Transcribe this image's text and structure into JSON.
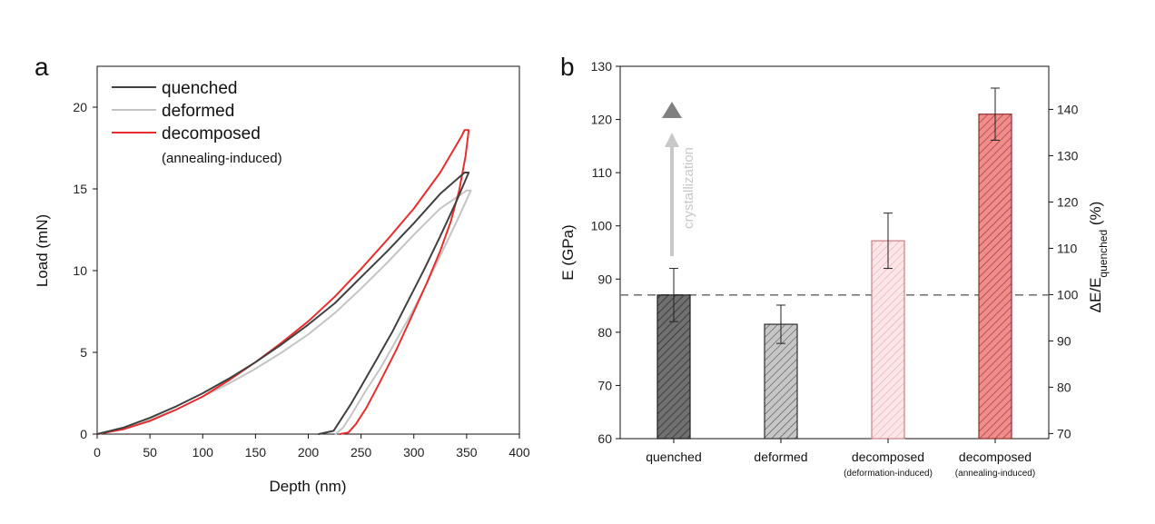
{
  "chart_data": [
    {
      "panel": "a",
      "type": "line",
      "xlabel": "Depth (nm)",
      "ylabel": "Load (mN)",
      "xlim": [
        0,
        400
      ],
      "ylim": [
        0,
        22.5
      ],
      "xticks": [
        0,
        50,
        100,
        150,
        200,
        250,
        300,
        350,
        400
      ],
      "yticks": [
        0,
        5,
        10,
        15,
        20
      ],
      "legend_subtitle": "(annealing-induced)",
      "series": [
        {
          "name": "quenched",
          "color": "#404040",
          "loading": [
            [
              0,
              0
            ],
            [
              25,
              0.4
            ],
            [
              50,
              1.0
            ],
            [
              75,
              1.7
            ],
            [
              100,
              2.5
            ],
            [
              125,
              3.4
            ],
            [
              150,
              4.4
            ],
            [
              175,
              5.5
            ],
            [
              200,
              6.7
            ],
            [
              225,
              8.0
            ],
            [
              250,
              9.6
            ],
            [
              275,
              11.2
            ],
            [
              300,
              12.9
            ],
            [
              325,
              14.7
            ],
            [
              348,
              16.0
            ]
          ],
          "unloading": [
            [
              352,
              16.0
            ],
            [
              340,
              14.2
            ],
            [
              325,
              12.1
            ],
            [
              310,
              10.1
            ],
            [
              295,
              8.2
            ],
            [
              280,
              6.3
            ],
            [
              265,
              4.6
            ],
            [
              250,
              2.9
            ],
            [
              240,
              1.8
            ],
            [
              230,
              0.8
            ],
            [
              224,
              0.2
            ],
            [
              210,
              0
            ]
          ]
        },
        {
          "name": "deformed",
          "color": "#c4c4c4",
          "loading": [
            [
              0,
              0
            ],
            [
              25,
              0.3
            ],
            [
              50,
              0.9
            ],
            [
              75,
              1.5
            ],
            [
              100,
              2.3
            ],
            [
              125,
              3.1
            ],
            [
              150,
              4.0
            ],
            [
              175,
              5.0
            ],
            [
              200,
              6.1
            ],
            [
              225,
              7.4
            ],
            [
              250,
              8.9
            ],
            [
              275,
              10.5
            ],
            [
              300,
              12.2
            ],
            [
              325,
              13.8
            ],
            [
              350,
              14.9
            ]
          ],
          "unloading": [
            [
              354,
              14.9
            ],
            [
              342,
              13.2
            ],
            [
              328,
              11.3
            ],
            [
              313,
              9.3
            ],
            [
              298,
              7.4
            ],
            [
              283,
              5.7
            ],
            [
              268,
              4.0
            ],
            [
              253,
              2.5
            ],
            [
              241,
              1.2
            ],
            [
              233,
              0.4
            ],
            [
              226,
              0
            ]
          ]
        },
        {
          "name": "decomposed",
          "color": "#e62e2e",
          "loading": [
            [
              0,
              0
            ],
            [
              25,
              0.3
            ],
            [
              50,
              0.8
            ],
            [
              75,
              1.5
            ],
            [
              100,
              2.3
            ],
            [
              125,
              3.3
            ],
            [
              150,
              4.4
            ],
            [
              175,
              5.6
            ],
            [
              200,
              6.9
            ],
            [
              225,
              8.4
            ],
            [
              250,
              10.1
            ],
            [
              275,
              11.9
            ],
            [
              300,
              13.8
            ],
            [
              325,
              16.0
            ],
            [
              345,
              18.2
            ],
            [
              348,
              18.6
            ]
          ],
          "unloading": [
            [
              352,
              18.6
            ],
            [
              349,
              17.0
            ],
            [
              343,
              14.9
            ],
            [
              335,
              13.0
            ],
            [
              325,
              11.2
            ],
            [
              312,
              9.2
            ],
            [
              298,
              7.2
            ],
            [
              283,
              5.1
            ],
            [
              268,
              3.2
            ],
            [
              255,
              1.6
            ],
            [
              245,
              0.6
            ],
            [
              238,
              0.1
            ],
            [
              230,
              0
            ]
          ]
        }
      ]
    },
    {
      "panel": "b",
      "type": "bar",
      "ylabel": "E (GPa)",
      "ylabel2_main": "ΔE/E",
      "ylabel2_sub": "quenched",
      "ylabel2_suffix": " (%)",
      "ylim": [
        60,
        130
      ],
      "yticks": [
        60,
        70,
        80,
        90,
        100,
        110,
        120,
        130
      ],
      "ylim2": [
        68.9,
        149.3
      ],
      "yticks2": [
        70,
        80,
        90,
        100,
        110,
        120,
        130,
        140
      ],
      "reference_line": 87,
      "annotation": "crystallization",
      "categories": [
        "quenched",
        "deformed",
        "decomposed",
        "decomposed"
      ],
      "category_subtitles": [
        "",
        "",
        "(deformation-induced)",
        "(annealing-induced)"
      ],
      "values": [
        87.0,
        81.5,
        97.2,
        121.0
      ],
      "errors": [
        5.0,
        3.6,
        5.2,
        4.9
      ],
      "colors": [
        "#707070",
        "#c4c4c4",
        "#fbe1e3",
        "#f08c8c"
      ]
    }
  ]
}
